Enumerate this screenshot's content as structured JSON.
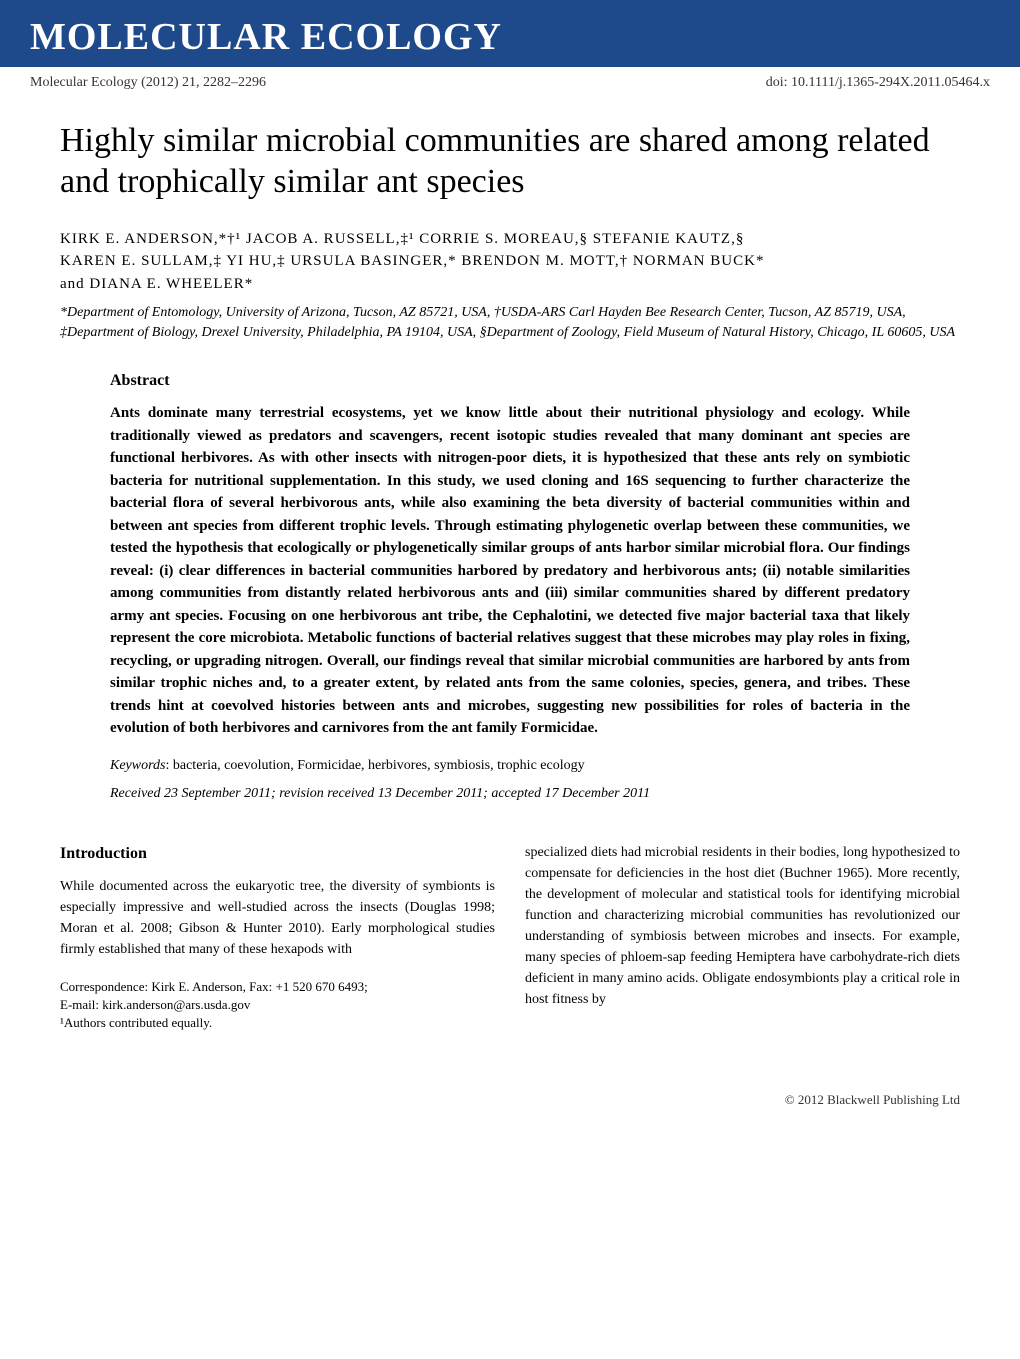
{
  "journal": {
    "name": "MOLECULAR ECOLOGY",
    "citation": "Molecular Ecology (2012) 21, 2282–2296",
    "doi": "doi: 10.1111/j.1365-294X.2011.05464.x"
  },
  "article": {
    "title": "Highly similar microbial communities are shared among related and trophically similar ant species",
    "authors_line1": "KIRK E. ANDERSON,*†¹ JACOB A. RUSSELL,‡¹ CORRIE S. MOREAU,§ STEFANIE KAUTZ,§",
    "authors_line2": "KAREN E. SULLAM,‡ YI HU,‡ URSULA BASINGER,* BRENDON M. MOTT,† NORMAN BUCK*",
    "authors_line3": "and DIANA E. WHEELER*",
    "affiliations": "*Department of Entomology, University of Arizona, Tucson, AZ 85721, USA, †USDA-ARS Carl Hayden Bee Research Center, Tucson, AZ 85719, USA, ‡Department of Biology, Drexel University, Philadelphia, PA 19104, USA, §Department of Zoology, Field Museum of Natural History, Chicago, IL 60605, USA"
  },
  "abstract": {
    "heading": "Abstract",
    "text": "Ants dominate many terrestrial ecosystems, yet we know little about their nutritional physiology and ecology. While traditionally viewed as predators and scavengers, recent isotopic studies revealed that many dominant ant species are functional herbivores. As with other insects with nitrogen-poor diets, it is hypothesized that these ants rely on symbiotic bacteria for nutritional supplementation. In this study, we used cloning and 16S sequencing to further characterize the bacterial flora of several herbivorous ants, while also examining the beta diversity of bacterial communities within and between ant species from different trophic levels. Through estimating phylogenetic overlap between these communities, we tested the hypothesis that ecologically or phylogenetically similar groups of ants harbor similar microbial flora. Our findings reveal: (i) clear differences in bacterial communities harbored by predatory and herbivorous ants; (ii) notable similarities among communities from distantly related herbivorous ants and (iii) similar communities shared by different predatory army ant species. Focusing on one herbivorous ant tribe, the Cephalotini, we detected five major bacterial taxa that likely represent the core microbiota. Metabolic functions of bacterial relatives suggest that these microbes may play roles in fixing, recycling, or upgrading nitrogen. Overall, our findings reveal that similar microbial communities are harbored by ants from similar trophic niches and, to a greater extent, by related ants from the same colonies, species, genera, and tribes. These trends hint at coevolved histories between ants and microbes, suggesting new possibilities for roles of bacteria in the evolution of both herbivores and carnivores from the ant family Formicidae.",
    "keywords_label": "Keywords",
    "keywords": ": bacteria, coevolution, Formicidae, herbivores, symbiosis, trophic ecology",
    "received": "Received 23 September 2011; revision received 13 December 2011; accepted 17 December 2011"
  },
  "introduction": {
    "heading": "Introduction",
    "col1_text1": "While documented across the eukaryotic tree, the diversity of symbionts is especially impressive and well-studied across the insects (Douglas 1998; Moran et al. 2008; Gibson & Hunter 2010). Early morphological studies firmly established that many of these hexapods with",
    "correspondence_line1": "Correspondence: Kirk E. Anderson, Fax: +1 520 670 6493;",
    "correspondence_line2": "E-mail: kirk.anderson@ars.usda.gov",
    "correspondence_line3": "¹Authors contributed equally.",
    "col2_text": "specialized diets had microbial residents in their bodies, long hypothesized to compensate for deficiencies in the host diet (Buchner 1965). More recently, the development of molecular and statistical tools for identifying microbial function and characterizing microbial communities has revolutionized our understanding of symbiosis between microbes and insects. For example, many species of phloem-sap feeding Hemiptera have carbohydrate-rich diets deficient in many amino acids. Obligate endosymbionts play a critical role in host fitness by"
  },
  "footer": {
    "copyright": "© 2012 Blackwell Publishing Ltd"
  },
  "colors": {
    "banner_blue": "#1e4a8c",
    "white": "#ffffff",
    "black": "#000000",
    "grey": "#333333"
  }
}
